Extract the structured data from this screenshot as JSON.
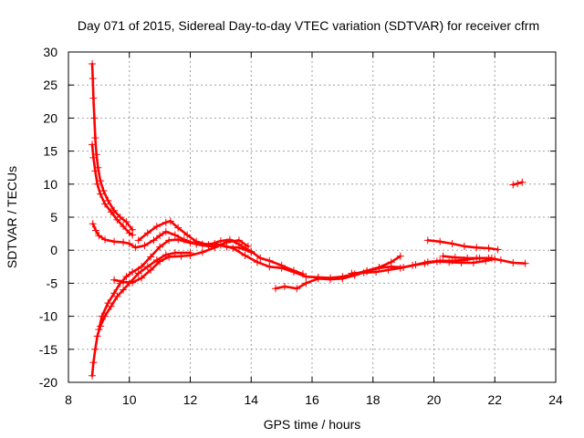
{
  "chart_data": {
    "type": "scatter",
    "title": "Day 071 of 2015, Sidereal Day-to-day VTEC variation (SDTVAR) for receiver cfrm",
    "xlabel": "GPS time / hours",
    "ylabel": "SDTVAR / TECUs",
    "xlim": [
      8,
      24
    ],
    "ylim": [
      -20,
      30
    ],
    "xticks": [
      8,
      10,
      12,
      14,
      16,
      18,
      20,
      22,
      24
    ],
    "yticks": [
      -20,
      -15,
      -10,
      -5,
      0,
      5,
      10,
      15,
      20,
      25,
      30
    ],
    "grid": true,
    "marker": "+",
    "color": "#ff0000",
    "series": [
      {
        "name": "upper-descending-arc",
        "points": [
          [
            8.78,
            28.2
          ],
          [
            8.8,
            26
          ],
          [
            8.82,
            23
          ],
          [
            8.85,
            20
          ],
          [
            8.88,
            17
          ],
          [
            8.92,
            14.5
          ],
          [
            8.97,
            12.5
          ],
          [
            9.05,
            10.5
          ],
          [
            9.15,
            9
          ],
          [
            9.3,
            7.5
          ],
          [
            9.5,
            6
          ],
          [
            9.7,
            5
          ],
          [
            9.9,
            4.3
          ],
          [
            10.1,
            3.1
          ]
        ]
      },
      {
        "name": "upper-descending-arc-2",
        "points": [
          [
            8.78,
            16
          ],
          [
            8.82,
            14
          ],
          [
            8.88,
            12
          ],
          [
            8.95,
            10
          ],
          [
            9.05,
            8.5
          ],
          [
            9.2,
            7
          ],
          [
            9.4,
            5.8
          ],
          [
            9.6,
            4.6
          ],
          [
            9.8,
            3.6
          ],
          [
            10.0,
            2.6
          ],
          [
            10.1,
            2.3
          ]
        ]
      },
      {
        "name": "upper-branch-to-peak",
        "points": [
          [
            8.8,
            4.0
          ],
          [
            8.9,
            3.0
          ],
          [
            9.0,
            2.2
          ],
          [
            9.2,
            1.6
          ],
          [
            9.5,
            1.3
          ],
          [
            9.8,
            1.2
          ],
          [
            10.0,
            1.0
          ],
          [
            10.2,
            0.4
          ],
          [
            10.5,
            0.7
          ],
          [
            10.8,
            1.5
          ],
          [
            11.0,
            2.2
          ],
          [
            11.2,
            2.8
          ],
          [
            11.5,
            2.3
          ],
          [
            11.8,
            1.6
          ],
          [
            12.2,
            0.9
          ],
          [
            12.6,
            0.6
          ],
          [
            13.0,
            0.8
          ],
          [
            13.4,
            0.3
          ],
          [
            13.8,
            -0.8
          ],
          [
            14.2,
            -1.8
          ],
          [
            14.6,
            -2.5
          ],
          [
            15.0,
            -2.7
          ],
          [
            15.4,
            -3.3
          ],
          [
            15.8,
            -4.0
          ],
          [
            16.2,
            -4.1
          ],
          [
            16.6,
            -4.2
          ],
          [
            17.0,
            -4.0
          ],
          [
            17.4,
            -3.6
          ],
          [
            17.8,
            -3.1
          ],
          [
            18.2,
            -2.6
          ],
          [
            18.6,
            -1.8
          ],
          [
            18.9,
            -0.9
          ]
        ]
      },
      {
        "name": "upper-branch-to-peak-2",
        "points": [
          [
            10.3,
            1.5
          ],
          [
            10.6,
            2.6
          ],
          [
            10.9,
            3.6
          ],
          [
            11.2,
            4.2
          ],
          [
            11.35,
            4.4
          ],
          [
            11.6,
            3.4
          ],
          [
            11.9,
            2.3
          ],
          [
            12.2,
            1.3
          ],
          [
            12.6,
            0.8
          ],
          [
            13.0,
            1.4
          ],
          [
            13.3,
            1.6
          ],
          [
            13.6,
            0.9
          ],
          [
            14.0,
            -0.2
          ],
          [
            14.3,
            -1.2
          ],
          [
            14.6,
            -1.6
          ],
          [
            15.0,
            -2.3
          ],
          [
            15.4,
            -3.1
          ],
          [
            15.7,
            -3.6
          ]
        ]
      },
      {
        "name": "lower-rising-arc",
        "points": [
          [
            8.78,
            -19
          ],
          [
            8.82,
            -17
          ],
          [
            8.88,
            -15
          ],
          [
            8.95,
            -13
          ],
          [
            9.05,
            -11.5
          ],
          [
            9.2,
            -10
          ],
          [
            9.4,
            -8.5
          ],
          [
            9.6,
            -7
          ],
          [
            9.8,
            -6
          ],
          [
            10.0,
            -5
          ],
          [
            10.3,
            -3.5
          ],
          [
            10.6,
            -2.5
          ],
          [
            10.9,
            -1.5
          ],
          [
            11.2,
            -0.7
          ],
          [
            11.5,
            -0.4
          ],
          [
            12.0,
            -0.4
          ]
        ]
      },
      {
        "name": "lower-rising-arc-2",
        "points": [
          [
            9.0,
            -12
          ],
          [
            9.1,
            -10
          ],
          [
            9.3,
            -8
          ],
          [
            9.5,
            -6.5
          ],
          [
            9.7,
            -5
          ],
          [
            9.9,
            -4
          ],
          [
            10.1,
            -3.3
          ],
          [
            10.4,
            -2.5
          ],
          [
            10.7,
            -1.0
          ],
          [
            11.0,
            0.5
          ],
          [
            11.3,
            1.5
          ],
          [
            11.6,
            1.6
          ],
          [
            12.0,
            1.1
          ],
          [
            12.4,
            0.9
          ],
          [
            12.8,
            1.0
          ],
          [
            13.2,
            0.5
          ],
          [
            13.6,
            0.4
          ],
          [
            14.0,
            -0.3
          ]
        ]
      },
      {
        "name": "lower-rising-arc-3",
        "points": [
          [
            9.5,
            -4.5
          ],
          [
            9.8,
            -4.8
          ],
          [
            10.1,
            -4.9
          ],
          [
            10.4,
            -4.2
          ],
          [
            10.7,
            -3.0
          ],
          [
            11.0,
            -1.7
          ],
          [
            11.3,
            -1.0
          ],
          [
            11.7,
            -0.9
          ],
          [
            12.0,
            -0.8
          ],
          [
            12.4,
            -0.3
          ],
          [
            12.8,
            0.4
          ],
          [
            13.2,
            1.2
          ],
          [
            13.6,
            1.5
          ],
          [
            13.9,
            0.6
          ]
        ]
      },
      {
        "name": "lower-tail",
        "points": [
          [
            14.8,
            -5.8
          ],
          [
            15.1,
            -5.5
          ],
          [
            15.5,
            -5.8
          ],
          [
            15.8,
            -5.0
          ],
          [
            16.2,
            -4.3
          ],
          [
            16.6,
            -4.4
          ],
          [
            17.0,
            -4.3
          ],
          [
            17.4,
            -3.8
          ],
          [
            17.8,
            -3.2
          ],
          [
            18.2,
            -2.7
          ],
          [
            18.6,
            -2.5
          ],
          [
            19.0,
            -2.6
          ],
          [
            19.4,
            -2.2
          ],
          [
            19.8,
            -1.8
          ],
          [
            20.2,
            -1.6
          ],
          [
            20.6,
            -1.6
          ],
          [
            21.0,
            -1.5
          ],
          [
            21.4,
            -1.2
          ],
          [
            21.8,
            -1.2
          ],
          [
            22.2,
            -1.5
          ],
          [
            22.6,
            -1.9
          ],
          [
            23.0,
            -2.0
          ]
        ]
      },
      {
        "name": "tail-2",
        "points": [
          [
            17.3,
            -3.5
          ],
          [
            17.7,
            -3.4
          ],
          [
            18.1,
            -3.3
          ],
          [
            18.5,
            -3.0
          ],
          [
            18.9,
            -2.7
          ],
          [
            19.3,
            -2.3
          ],
          [
            19.7,
            -2.0
          ],
          [
            20.1,
            -1.7
          ],
          [
            20.5,
            -1.8
          ],
          [
            20.9,
            -1.9
          ],
          [
            21.3,
            -1.9
          ],
          [
            21.7,
            -1.6
          ],
          [
            22.0,
            -1.3
          ]
        ]
      },
      {
        "name": "late-segment",
        "points": [
          [
            19.8,
            1.5
          ],
          [
            20.2,
            1.3
          ],
          [
            20.6,
            1.0
          ],
          [
            21.0,
            0.6
          ],
          [
            21.4,
            0.4
          ],
          [
            21.8,
            0.3
          ],
          [
            22.1,
            0.1
          ]
        ]
      },
      {
        "name": "late-segment-2",
        "points": [
          [
            20.3,
            -0.9
          ],
          [
            20.7,
            -1.1
          ],
          [
            21.1,
            -1.2
          ],
          [
            21.5,
            -1.2
          ],
          [
            21.9,
            -1.2
          ]
        ]
      },
      {
        "name": "end-blob",
        "points": [
          [
            22.6,
            9.9
          ],
          [
            22.75,
            10.1
          ],
          [
            22.9,
            10.3
          ]
        ]
      }
    ]
  }
}
